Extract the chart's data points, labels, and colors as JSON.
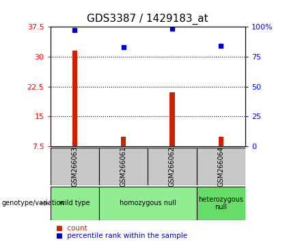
{
  "title": "GDS3387 / 1429183_at",
  "samples": [
    "GSM266063",
    "GSM266061",
    "GSM266062",
    "GSM266064"
  ],
  "counts": [
    31.5,
    10.0,
    21.0,
    10.0
  ],
  "percentiles": [
    97,
    83,
    98,
    84
  ],
  "ylim_left": [
    7.5,
    37.5
  ],
  "ylim_right": [
    0,
    100
  ],
  "yticks_left": [
    7.5,
    15.0,
    22.5,
    30.0,
    37.5
  ],
  "yticks_right": [
    0,
    25,
    50,
    75,
    100
  ],
  "ytick_labels_left": [
    "7.5",
    "15",
    "22.5",
    "30",
    "37.5"
  ],
  "ytick_labels_right": [
    "0",
    "25",
    "50",
    "75",
    "100%"
  ],
  "groups": [
    {
      "label": "wild type",
      "span": [
        0,
        1
      ],
      "color": "#90EE90"
    },
    {
      "label": "homozygous null",
      "span": [
        1,
        3
      ],
      "color": "#90EE90"
    },
    {
      "label": "heterozygous\nnull",
      "span": [
        3,
        4
      ],
      "color": "#66DD66"
    }
  ],
  "bar_color": "#CC2200",
  "dot_color": "#0000CC",
  "sample_bg_color": "#C8C8C8",
  "legend_count_color": "#CC2200",
  "legend_dot_color": "#0000CC",
  "genotype_label": "genotype/variation"
}
